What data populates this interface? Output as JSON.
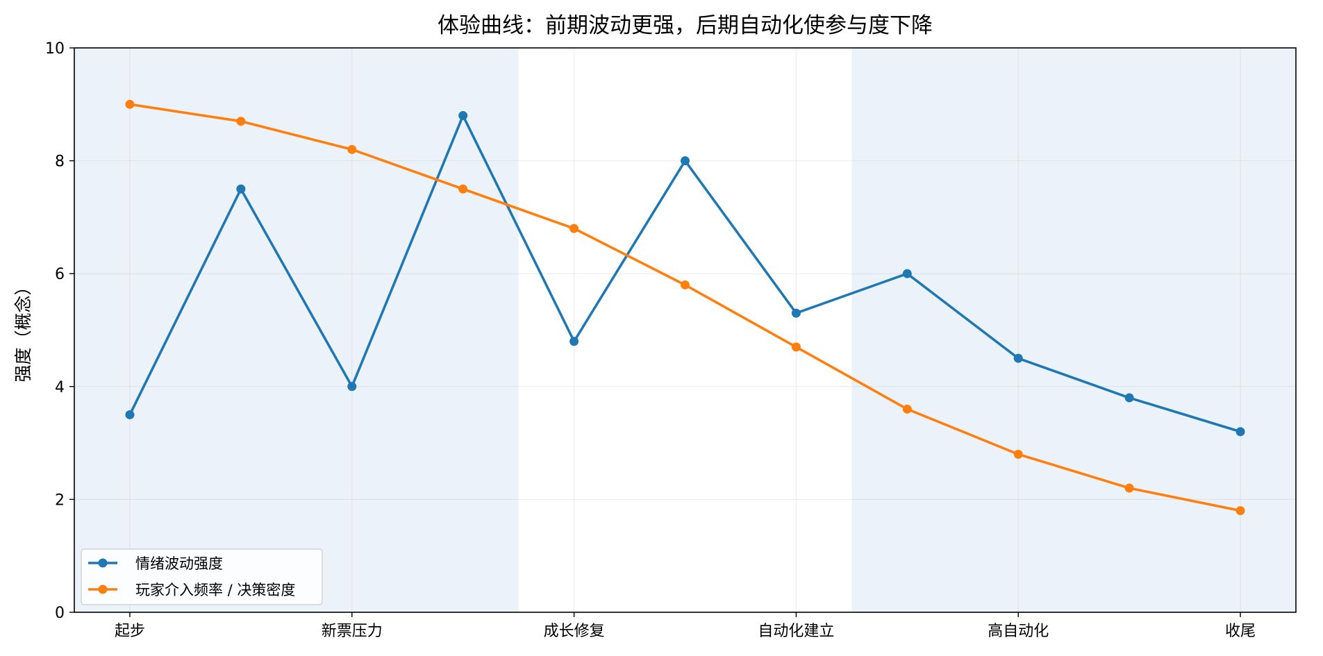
{
  "chart_data": {
    "type": "line",
    "title": "体验曲线：前期波动更强，后期自动化使参与度下降",
    "xlabel": "",
    "ylabel": "强度（概念）",
    "ylim": [
      0,
      10
    ],
    "xlim": [
      -0.5,
      10.5
    ],
    "x": [
      0,
      1,
      2,
      3,
      4,
      5,
      6,
      7,
      8,
      9,
      10
    ],
    "xticks": [
      {
        "x": 0,
        "label": "起步"
      },
      {
        "x": 2,
        "label": "新票压力"
      },
      {
        "x": 4,
        "label": "成长修复"
      },
      {
        "x": 6,
        "label": "自动化建立"
      },
      {
        "x": 8,
        "label": "高自动化"
      },
      {
        "x": 10,
        "label": "收尾"
      }
    ],
    "yticks": [
      0,
      2,
      4,
      6,
      8,
      10
    ],
    "grid": true,
    "legend_position": "lower-left",
    "shaded_regions": [
      {
        "from": -0.5,
        "to": 3.5,
        "color": "#dfeaf6"
      },
      {
        "from": 6.5,
        "to": 10.5,
        "color": "#dfeaf6"
      }
    ],
    "series": [
      {
        "name": "情绪波动强度",
        "color": "#1f77b4",
        "values": [
          3.5,
          7.5,
          4.0,
          8.8,
          4.8,
          8.0,
          5.3,
          6.0,
          4.5,
          3.8,
          3.2
        ]
      },
      {
        "name": "玩家介入频率 / 决策密度",
        "color": "#ff7f0e",
        "values": [
          9.0,
          8.7,
          8.2,
          7.5,
          6.8,
          5.8,
          4.7,
          3.6,
          2.8,
          2.2,
          1.8
        ]
      }
    ]
  }
}
